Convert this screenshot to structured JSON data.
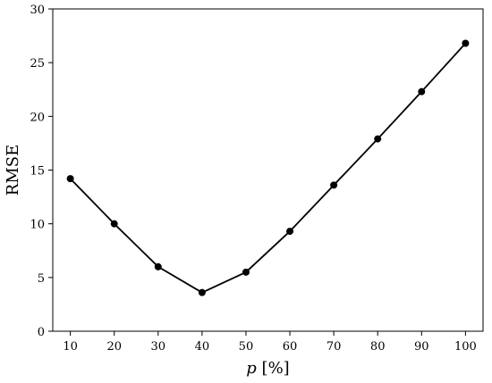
{
  "chart_data": {
    "type": "line",
    "x": [
      10,
      20,
      30,
      40,
      50,
      60,
      70,
      80,
      90,
      100
    ],
    "series": [
      {
        "values": [
          14.2,
          10.0,
          6.0,
          3.6,
          5.5,
          9.3,
          13.6,
          17.9,
          22.3,
          26.8
        ]
      }
    ],
    "title": "",
    "xlabel_var": "p",
    "xlabel_rest": " [%]",
    "ylabel": "RMSE",
    "xlim": [
      6,
      104
    ],
    "ylim": [
      0,
      30
    ],
    "xticks": [
      10,
      20,
      30,
      40,
      50,
      60,
      70,
      80,
      90,
      100
    ],
    "yticks": [
      0,
      5,
      10,
      15,
      20,
      25,
      30
    ],
    "grid": false,
    "legend": "none",
    "line_color": "#000000",
    "marker_color": "#000000"
  }
}
